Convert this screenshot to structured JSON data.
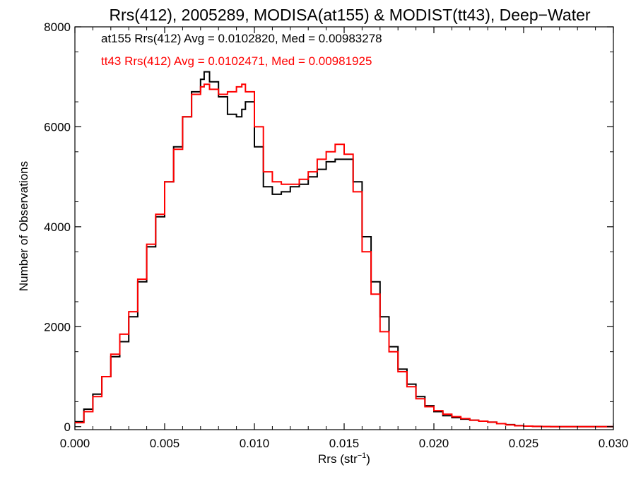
{
  "chart_data": {
    "type": "line",
    "step": true,
    "title": "Rrs(412), 2005289, MODISA(at155) & MODIST(tt43), Deep−Water",
    "xlabel": "Rrs (str",
    "xlabel_sup": "−1",
    "xlabel_close": ")",
    "ylabel": "Number of Observations",
    "xlim": [
      0.0,
      0.03
    ],
    "ylim": [
      -60,
      8000
    ],
    "grid": false,
    "x_tick_values": [
      0.0,
      0.005,
      0.01,
      0.015,
      0.02,
      0.025,
      0.03
    ],
    "x_tick_labels": [
      "0.000",
      "0.005",
      "0.010",
      "0.015",
      "0.020",
      "0.025",
      "0.030"
    ],
    "y_tick_values": [
      0,
      2000,
      4000,
      6000,
      8000
    ],
    "y_tick_labels": [
      "0",
      "2000",
      "4000",
      "6000",
      "8000"
    ],
    "annotations": [
      {
        "text": "at155 Rrs(412) Avg = 0.0102820, Med = 0.00983278",
        "color": "#000000"
      },
      {
        "text": "tt43 Rrs(412) Avg = 0.0102471, Med = 0.00981925",
        "color": "#ff0000"
      }
    ],
    "series": [
      {
        "color": "#000000",
        "x": [
          0.0,
          0.0005,
          0.001,
          0.0015,
          0.002,
          0.0025,
          0.003,
          0.0035,
          0.004,
          0.0045,
          0.005,
          0.0055,
          0.006,
          0.0065,
          0.007,
          0.0072,
          0.0075,
          0.008,
          0.0085,
          0.009,
          0.0093,
          0.0095,
          0.01,
          0.0105,
          0.011,
          0.0115,
          0.012,
          0.0125,
          0.013,
          0.0135,
          0.014,
          0.0145,
          0.015,
          0.0155,
          0.016,
          0.0165,
          0.017,
          0.0175,
          0.018,
          0.0185,
          0.019,
          0.0195,
          0.02,
          0.0205,
          0.021,
          0.0215,
          0.022,
          0.0225,
          0.023,
          0.0235,
          0.024,
          0.0245,
          0.025,
          0.0255,
          0.026,
          0.0265,
          0.027,
          0.0275,
          0.028,
          0.0285,
          0.029,
          0.0295,
          0.03
        ],
        "y": [
          100,
          350,
          650,
          1000,
          1400,
          1700,
          2200,
          2900,
          3600,
          4200,
          4900,
          5600,
          6200,
          6700,
          6950,
          7100,
          6900,
          6600,
          6250,
          6200,
          6350,
          6500,
          5600,
          4800,
          4650,
          4700,
          4800,
          4850,
          5000,
          5150,
          5300,
          5350,
          5350,
          4900,
          3800,
          2900,
          2200,
          1600,
          1150,
          850,
          600,
          420,
          300,
          220,
          180,
          150,
          130,
          110,
          90,
          60,
          40,
          20,
          10,
          5,
          2,
          1,
          0,
          0,
          0,
          0,
          0,
          0,
          0
        ]
      },
      {
        "color": "#ff0000",
        "x": [
          0.0,
          0.0005,
          0.001,
          0.0015,
          0.002,
          0.0025,
          0.003,
          0.0035,
          0.004,
          0.0045,
          0.005,
          0.0055,
          0.006,
          0.0065,
          0.007,
          0.0072,
          0.0075,
          0.008,
          0.0085,
          0.009,
          0.0093,
          0.0095,
          0.01,
          0.0105,
          0.011,
          0.0115,
          0.012,
          0.0125,
          0.013,
          0.0135,
          0.014,
          0.0145,
          0.015,
          0.0155,
          0.016,
          0.0165,
          0.017,
          0.0175,
          0.018,
          0.0185,
          0.019,
          0.0195,
          0.02,
          0.0205,
          0.021,
          0.0215,
          0.022,
          0.0225,
          0.023,
          0.0235,
          0.024,
          0.0245,
          0.025,
          0.0255,
          0.026,
          0.0265,
          0.027,
          0.0275,
          0.028,
          0.0285,
          0.029,
          0.0295,
          0.03
        ],
        "y": [
          80,
          300,
          600,
          1000,
          1450,
          1850,
          2300,
          2950,
          3650,
          4250,
          4900,
          5550,
          6200,
          6650,
          6800,
          6850,
          6750,
          6650,
          6700,
          6800,
          6850,
          6700,
          6000,
          5100,
          4900,
          4850,
          4850,
          4950,
          5100,
          5350,
          5500,
          5650,
          5450,
          4700,
          3500,
          2650,
          1900,
          1500,
          1100,
          800,
          560,
          400,
          320,
          250,
          200,
          160,
          130,
          110,
          90,
          60,
          35,
          18,
          10,
          5,
          2,
          1,
          0,
          0,
          0,
          0,
          0,
          0,
          0
        ]
      }
    ]
  }
}
